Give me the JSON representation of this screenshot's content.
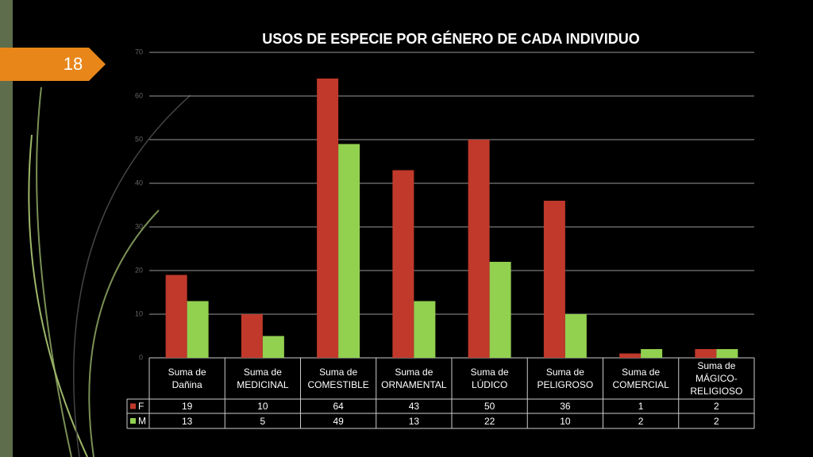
{
  "slide_number": "18",
  "chart_data": {
    "type": "bar",
    "title": "USOS DE ESPECIE POR GÉNERO DE CADA INDIVIDUO",
    "categories": [
      "Suma de Dañina",
      "Suma de MEDICINAL",
      "Suma de COMESTIBLE",
      "Suma de ORNAMENTAL",
      "Suma de LÚDICO",
      "Suma de PELIGROSO",
      "Suma de COMERCIAL",
      "Suma de MÁGICO-RELIGIOSO"
    ],
    "series": [
      {
        "name": "F",
        "color": "#c0392b",
        "values": [
          19,
          10,
          64,
          43,
          50,
          36,
          1,
          2
        ]
      },
      {
        "name": "M",
        "color": "#92d050",
        "values": [
          13,
          5,
          49,
          13,
          22,
          10,
          2,
          2
        ]
      }
    ],
    "ylim": [
      0,
      70
    ],
    "yticks": [
      0,
      10,
      20,
      30,
      40,
      50,
      60,
      70
    ],
    "grid": true
  }
}
